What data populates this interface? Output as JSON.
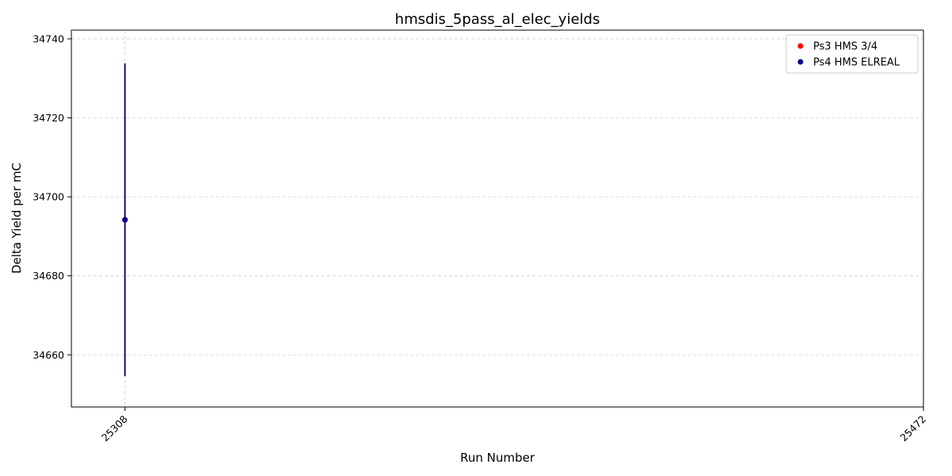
{
  "chart_data": {
    "type": "scatter",
    "title": "hmsdis_5pass_al_elec_yields",
    "xlabel": "Run Number",
    "ylabel": "Delta Yield per mC",
    "x_ticks": [
      "25308",
      "25472"
    ],
    "y_ticks": [
      "34660",
      "34680",
      "34700",
      "34720",
      "34740"
    ],
    "xlim": [
      25297,
      25472
    ],
    "ylim": [
      34646.8,
      34742.2
    ],
    "grid": true,
    "legend_position": "top-right",
    "series": [
      {
        "name": "Ps3 HMS 3/4",
        "color": "#ff0000",
        "points": [
          {
            "x": 25308,
            "y": 34694.2,
            "yerr": 39.6
          }
        ]
      },
      {
        "name": "Ps4 HMS ELREAL",
        "color": "#00008b",
        "points": [
          {
            "x": 25308,
            "y": 34694.2,
            "yerr": 39.6
          }
        ]
      }
    ]
  }
}
